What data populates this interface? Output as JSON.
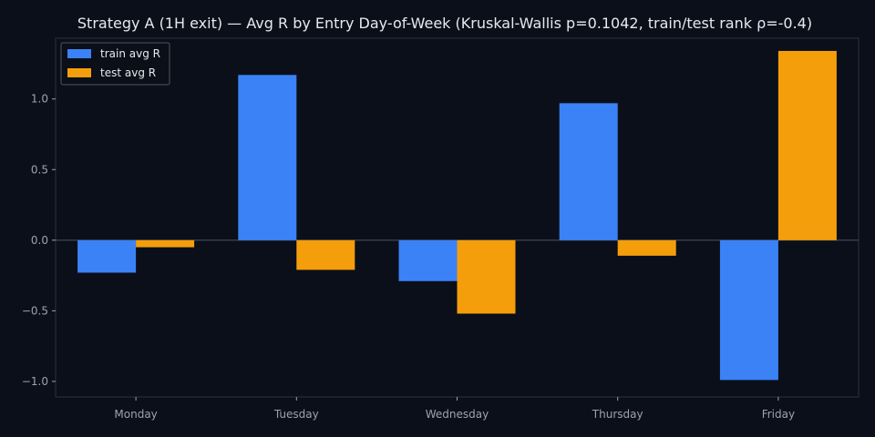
{
  "chart_data": {
    "type": "bar",
    "title": "Strategy A (1H exit) — Avg R by Entry Day-of-Week (Kruskal-Wallis p=0.1042, train/test rank ρ=-0.4)",
    "xlabel": "",
    "ylabel": "",
    "categories": [
      "Monday",
      "Tuesday",
      "Wednesday",
      "Thursday",
      "Friday"
    ],
    "series": [
      {
        "name": "train avg R",
        "color": "#3b82f6",
        "values": [
          -0.23,
          1.17,
          -0.29,
          0.97,
          -0.99
        ]
      },
      {
        "name": "test avg R",
        "color": "#f59e0b",
        "values": [
          -0.05,
          -0.21,
          -0.52,
          -0.11,
          1.34
        ]
      }
    ],
    "ylim": [
      -1.11,
      1.43
    ],
    "yticks": [
      -1.0,
      -0.5,
      0.0,
      0.5,
      1.0
    ],
    "ytick_labels": [
      "−1.0",
      "−0.5",
      "0.0",
      "0.5",
      "1.0"
    ],
    "grid": false,
    "legend_position": "top-left",
    "colors": {
      "background": "#0b0f19",
      "axes_border": "#2a3140",
      "zero_line": "#4b5563",
      "tick_text": "#9aa3b2",
      "title_text": "#e6e9ef",
      "legend_bg": "#0b0f19",
      "legend_border": "#4b5563"
    }
  }
}
